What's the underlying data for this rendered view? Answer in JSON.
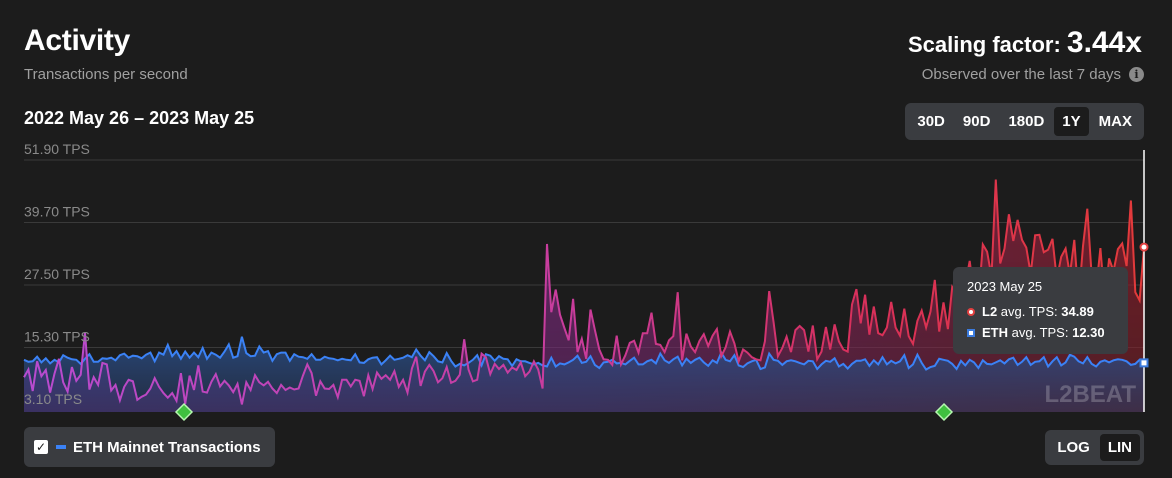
{
  "header": {
    "title": "Activity",
    "subtitle": "Transactions per second",
    "scaling_label": "Scaling factor:",
    "scaling_value": "3.44x",
    "observed": "Observed over the last 7 days"
  },
  "range_label": "2022 May 26 – 2023 May 25",
  "timeframes": [
    {
      "label": "30D",
      "active": false
    },
    {
      "label": "90D",
      "active": false
    },
    {
      "label": "180D",
      "active": false
    },
    {
      "label": "1Y",
      "active": true
    },
    {
      "label": "MAX",
      "active": false
    }
  ],
  "tooltip": {
    "date": "2023 May 25",
    "l2_label": "L2",
    "l2_text": "avg. TPS:",
    "l2_value": "34.89",
    "eth_label": "ETH",
    "eth_text": "avg. TPS:",
    "eth_value": "12.30"
  },
  "legend": {
    "eth_label": "ETH Mainnet Transactions",
    "checked": true
  },
  "scale_buttons": [
    {
      "label": "LOG",
      "active": false
    },
    {
      "label": "LIN",
      "active": true
    }
  ],
  "watermark": "L2BEAT",
  "colors": {
    "l2": "#e23a3a",
    "l2_early": "#c03fc0",
    "eth": "#3b82f6",
    "background": "#1c1c1c"
  },
  "chart_data": {
    "type": "area",
    "title": "Activity",
    "ylabel": "Transactions per second",
    "y_ticks": [
      3.1,
      15.3,
      27.5,
      39.7,
      51.9
    ],
    "y_tick_labels": [
      "3.10 TPS",
      "15.30 TPS",
      "27.50 TPS",
      "39.70 TPS",
      "51.90 TPS"
    ],
    "ylim": [
      3.1,
      51.9
    ],
    "x_start": "2022-05-26",
    "x_end": "2023-05-25",
    "legend": "bottom-left",
    "grid": true,
    "events": [
      "2022-07-17",
      "2023-03-21"
    ],
    "series": [
      {
        "name": "L2",
        "values": [
          9.5,
          11.0,
          6.8,
          12.6,
          9.7,
          10.9,
          6.5,
          10.2,
          13.1,
          8.5,
          6.7,
          11.5,
          8.8,
          10.0,
          18.2,
          7.1,
          9.5,
          8.0,
          12.3,
          12.0,
          6.9,
          8.0,
          5.0,
          7.6,
          9.0,
          8.7,
          5.1,
          5.7,
          6.1,
          7.3,
          9.3,
          7.6,
          6.4,
          5.5,
          6.4,
          4.9,
          10.3,
          4.3,
          9.8,
          7.0,
          11.8,
          6.7,
          6.5,
          8.6,
          10.1,
          7.7,
          8.8,
          7.9,
          6.6,
          8.2,
          4.2,
          8.5,
          7.0,
          9.9,
          8.5,
          7.9,
          8.6,
          7.3,
          6.4,
          8.0,
          7.0,
          7.5,
          7.1,
          7.3,
          9.8,
          12.0,
          10.3,
          5.9,
          8.7,
          7.3,
          7.2,
          8.0,
          5.6,
          9.0,
          9.0,
          7.7,
          9.0,
          8.8,
          5.8,
          9.9,
          7.2,
          10.4,
          9.2,
          9.9,
          9.0,
          10.7,
          7.6,
          9.0,
          6.5,
          11.2,
          13.5,
          7.8,
          10.6,
          11.9,
          10.7,
          8.5,
          9.3,
          11.5,
          8.4,
          8.8,
          10.0,
          16.9,
          11.0,
          8.7,
          9.0,
          14.1,
          13.4,
          10.1,
          12.1,
          11.1,
          11.9,
          10.4,
          11.4,
          10.9,
          12.4,
          9.7,
          10.6,
          12.6,
          11.0,
          7.3,
          35.5,
          22.2,
          26.6,
          21.7,
          19.1,
          16.7,
          24.8,
          14.4,
          17.0,
          13.1,
          22.7,
          18.7,
          14.9,
          13.0,
          12.9,
          11.9,
          17.6,
          12.0,
          13.8,
          16.2,
          16.6,
          14.3,
          18.1,
          18.1,
          22.1,
          16.0,
          15.8,
          14.4,
          16.7,
          17.5,
          26.1,
          12.8,
          18.0,
          15.5,
          14.4,
          16.6,
          17.9,
          15.6,
          17.6,
          18.9,
          13.6,
          15.3,
          18.4,
          16.1,
          12.6,
          14.9,
          14.3,
          13.4,
          13.0,
          12.8,
          16.5,
          26.3,
          20.2,
          13.6,
          15.2,
          17.4,
          14.4,
          18.7,
          19.5,
          18.7,
          14.5,
          19.6,
          13.0,
          14.5,
          19.3,
          14.9,
          19.8,
          16.5,
          14.9,
          14.5,
          23.7,
          26.7,
          20.0,
          25.6,
          17.8,
          23.3,
          18.1,
          17.7,
          19.2,
          24.2,
          19.2,
          17.6,
          22.9,
          17.5,
          16.0,
          20.5,
          22.5,
          19.2,
          22.3,
          28.5,
          18.4,
          24.1,
          18.9,
          27.1,
          25.8,
          23.9,
          27.6,
          32.2,
          25.4,
          24.0,
          35.4,
          34.0,
          29.2,
          48.1,
          31.7,
          34.6,
          41.3,
          36.1,
          40.2,
          36.3,
          34.8,
          29.7,
          37.2,
          37.3,
          33.9,
          34.4,
          36.5,
          28.6,
          33.0,
          34.6,
          29.5,
          36.3,
          24.6,
          35.1,
          42.4,
          29.2,
          26.5,
          34.7,
          24.1,
          32.7,
          30.2,
          34.5,
          35.6,
          31.2,
          44.0,
          26.1,
          24.5,
          34.9
        ]
      },
      {
        "name": "ETH",
        "values": [
          12.9,
          12.5,
          12.6,
          13.5,
          12.4,
          13.2,
          12.2,
          12.9,
          12.4,
          13.8,
          13.3,
          13.0,
          12.9,
          12.1,
          13.1,
          14.0,
          12.5,
          12.5,
          13.2,
          13.1,
          13.3,
          12.8,
          13.8,
          14.1,
          13.3,
          13.7,
          13.6,
          13.2,
          13.9,
          14.3,
          12.6,
          14.3,
          13.9,
          15.8,
          13.6,
          14.6,
          13.1,
          14.5,
          13.3,
          14.3,
          13.4,
          15.2,
          13.1,
          14.3,
          13.9,
          13.3,
          14.5,
          15.9,
          13.3,
          13.6,
          17.4,
          14.2,
          13.6,
          13.7,
          15.5,
          14.3,
          14.6,
          12.7,
          14.0,
          14.3,
          14.3,
          12.7,
          14.0,
          13.5,
          13.4,
          13.1,
          14.0,
          12.9,
          12.9,
          13.5,
          13.2,
          13.1,
          12.8,
          13.1,
          12.9,
          12.8,
          14.0,
          12.4,
          12.3,
          13.0,
          13.3,
          13.4,
          12.0,
          12.8,
          13.7,
          12.9,
          13.1,
          13.3,
          13.8,
          13.4,
          14.9,
          13.7,
          12.8,
          14.4,
          13.6,
          12.6,
          12.4,
          14.2,
          12.7,
          11.6,
          12.1,
          11.8,
          12.3,
          12.9,
          13.8,
          11.8,
          14.0,
          13.7,
          12.7,
          13.6,
          13.1,
          13.0,
          11.7,
          13.0,
          12.6,
          12.6,
          12.3,
          12.0,
          12.3,
          11.8,
          11.6,
          13.3,
          11.6,
          12.2,
          12.0,
          12.4,
          12.9,
          13.7,
          12.3,
          12.5,
          13.6,
          11.9,
          11.3,
          12.4,
          12.5,
          12.9,
          12.2,
          12.3,
          12.0,
          12.7,
          13.3,
          12.0,
          12.0,
          12.6,
          12.9,
          12.2,
          14.1,
          12.8,
          12.3,
          13.0,
          13.5,
          11.8,
          13.1,
          12.3,
          12.9,
          13.3,
          12.4,
          11.7,
          12.8,
          12.3,
          14.3,
          12.9,
          12.6,
          13.8,
          11.8,
          11.5,
          12.2,
          12.6,
          12.9,
          11.1,
          11.4,
          14.1,
          12.9,
          12.7,
          11.9,
          12.6,
          12.8,
          12.6,
          12.3,
          12.0,
          12.7,
          12.6,
          11.1,
          12.0,
          12.7,
          12.5,
          13.2,
          11.6,
          12.1,
          11.2,
          12.1,
          12.7,
          12.7,
          13.0,
          11.7,
          12.8,
          12.0,
          13.4,
          12.0,
          12.7,
          12.2,
          12.6,
          13.8,
          11.3,
          12.0,
          13.9,
          12.3,
          11.0,
          11.5,
          11.7,
          13.1,
          12.9,
          12.7,
          12.1,
          11.1,
          12.7,
          11.8,
          12.9,
          12.4,
          11.3,
          12.8,
          12.1,
          12.0,
          12.4,
          12.8,
          12.2,
          13.0,
          13.3,
          11.9,
          12.5,
          13.4,
          11.9,
          12.5,
          12.6,
          13.4,
          11.6,
          12.6,
          13.4,
          11.8,
          12.4,
          13.9,
          13.5,
          12.6,
          12.2,
          13.4,
          12.1,
          11.6,
          12.5,
          12.8,
          12.4,
          12.8,
          13.0,
          12.9,
          12.6,
          11.9,
          12.1,
          12.9,
          12.3
        ]
      }
    ]
  }
}
